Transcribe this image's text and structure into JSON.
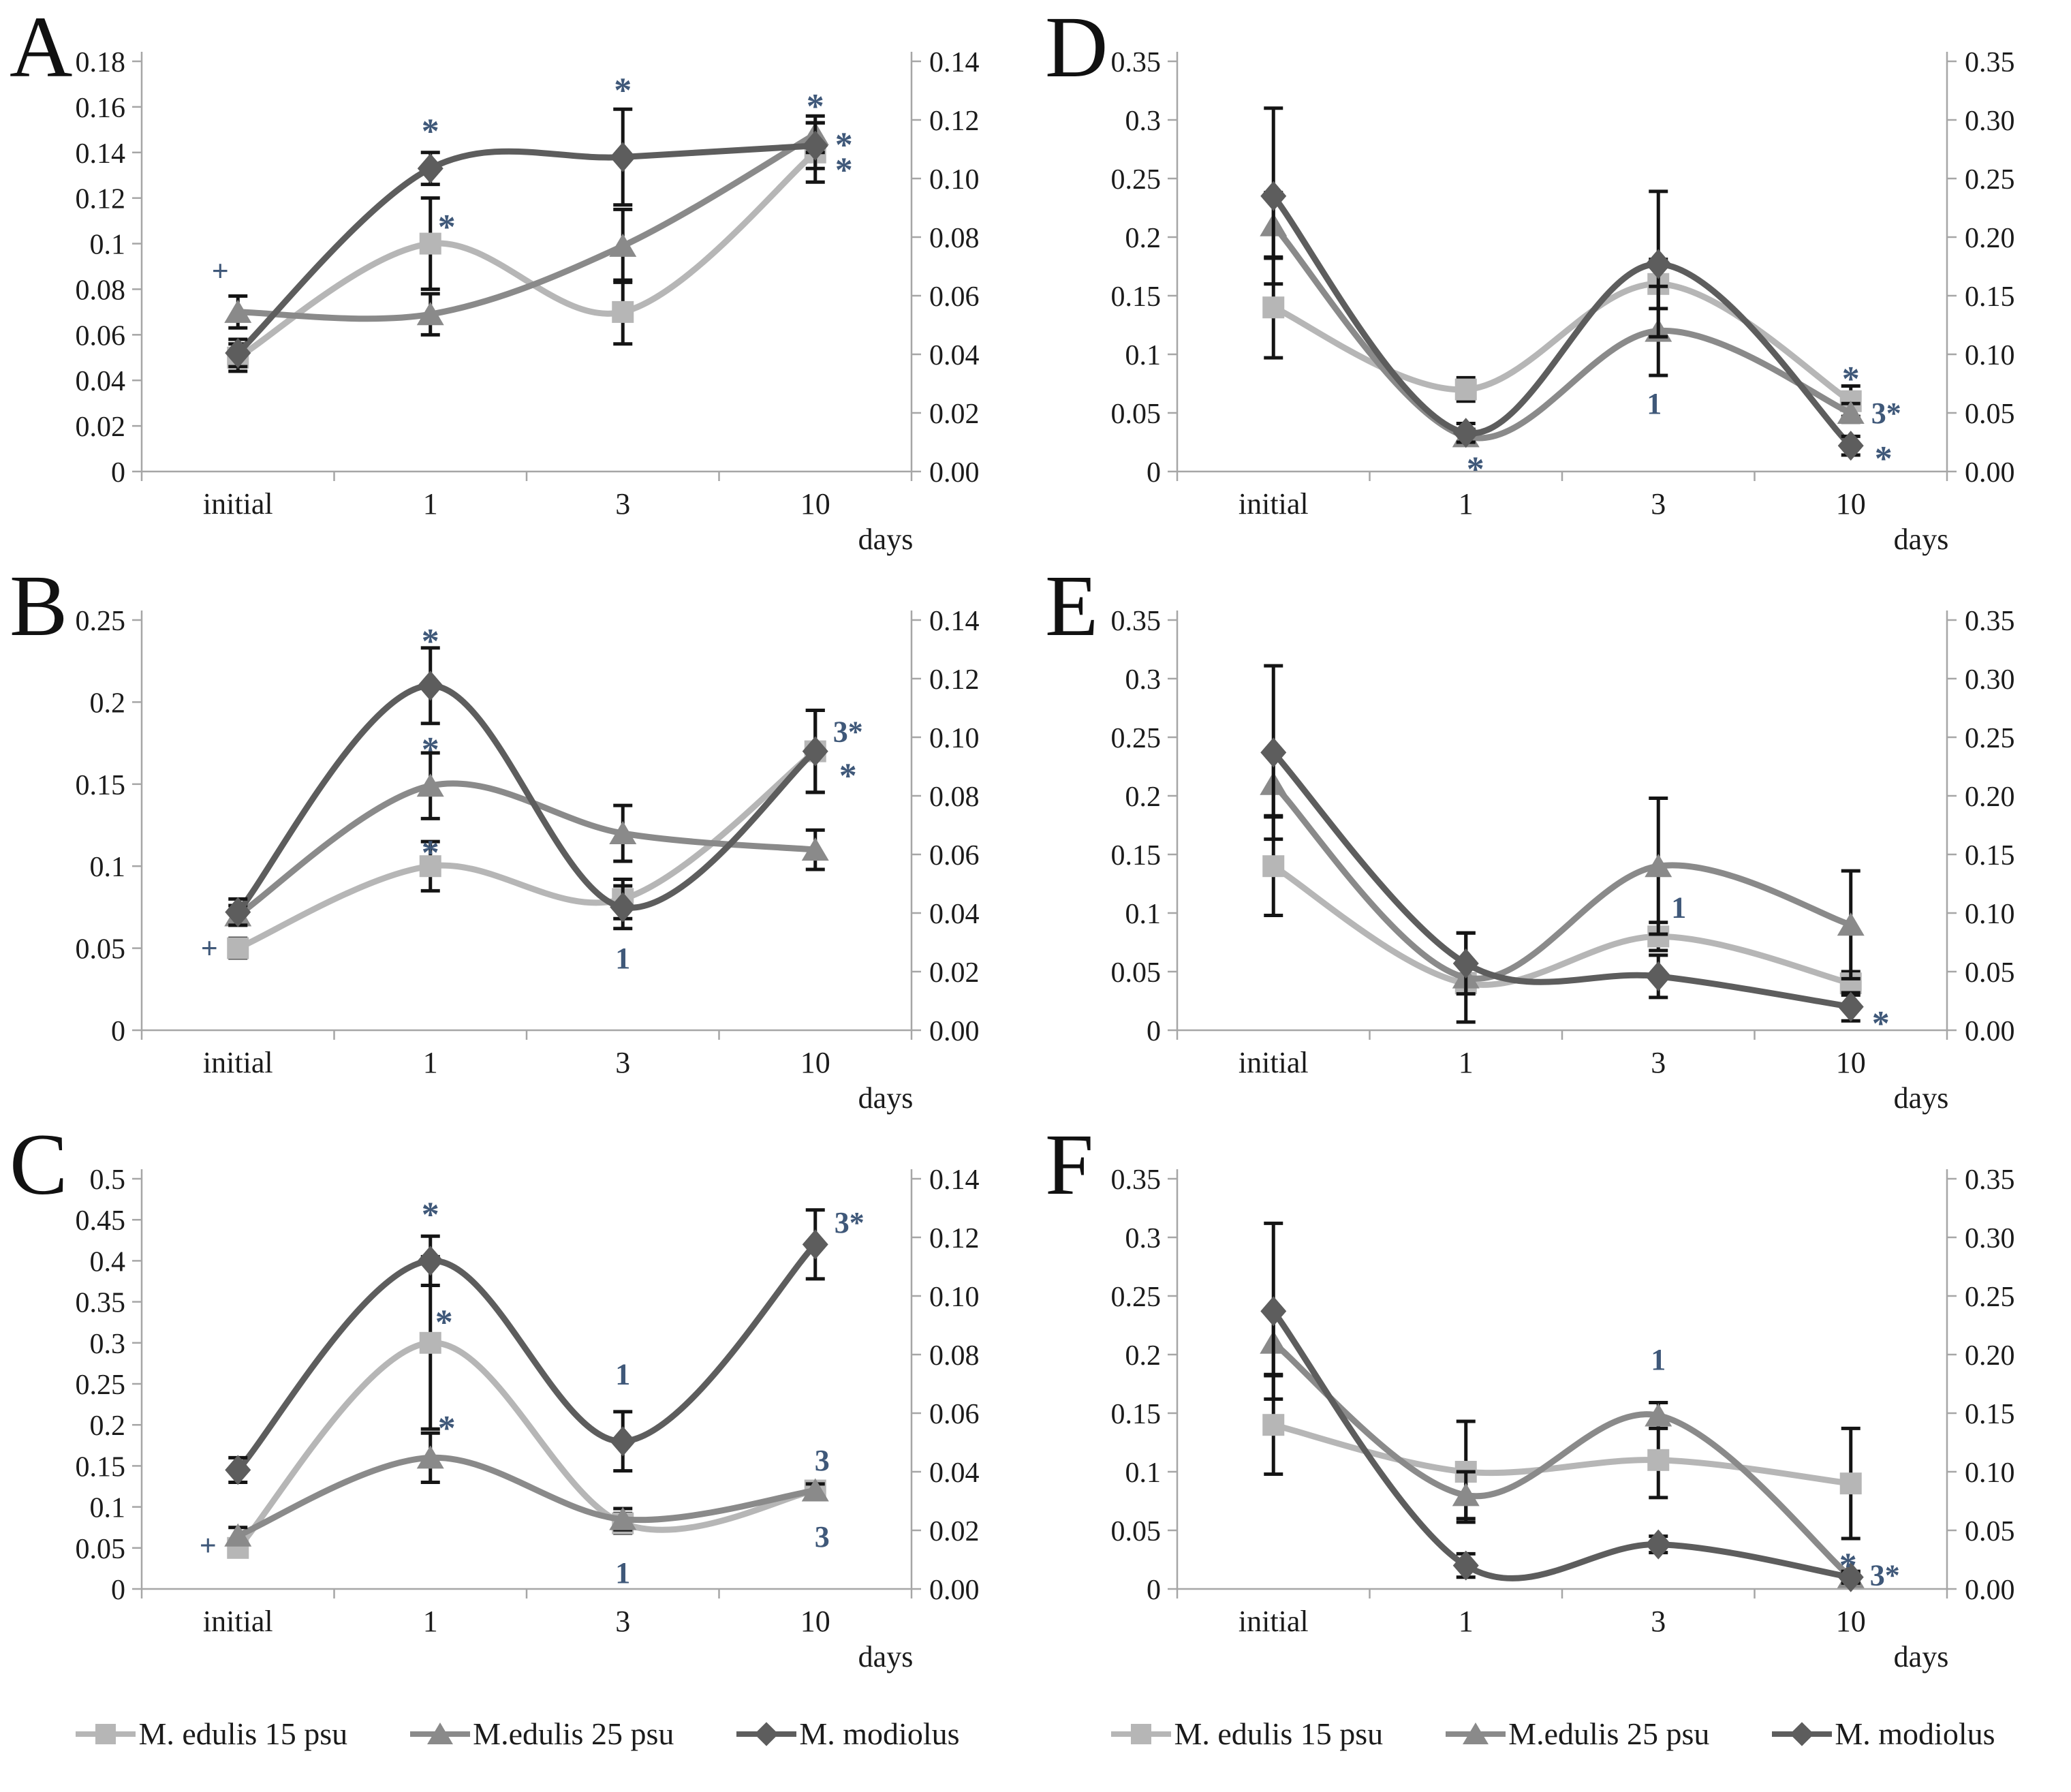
{
  "series_meta": [
    {
      "id": "edulis15",
      "name": "M. edulis 15 psu",
      "marker": "square",
      "color": "#b6b6b6"
    },
    {
      "id": "edulis25",
      "name": "M.edulis 25 psu",
      "marker": "triangle",
      "color": "#8a8a8a"
    },
    {
      "id": "modiolus",
      "name": "M. modiolus",
      "marker": "diamond",
      "color": "#5d5d5d"
    }
  ],
  "colors": {
    "background": "#ffffff",
    "axis": "#a6a6a6",
    "tick_text": "#1b1b1b",
    "panel_letter": "#111111",
    "error_bar": "#141414",
    "annotation": "#3f5879"
  },
  "legend": {
    "note": "same three entries shown under left and right chart columns"
  },
  "chart_data": [
    {
      "label": "A",
      "type": "line",
      "x_categories": [
        "initial",
        "1",
        "3",
        "10"
      ],
      "x_axis_label": "days",
      "left_axis": {
        "max": 0.18,
        "ticks": [
          "0.18",
          "0.16",
          "0.14",
          "0.12",
          "0.1",
          "0.08",
          "0.06",
          "0.04",
          "0.02",
          "0"
        ]
      },
      "right_axis": {
        "ticks": [
          "0.14",
          "0.12",
          "0.10",
          "0.08",
          "0.06",
          "0.04",
          "0.02",
          "0.00"
        ]
      },
      "series": [
        {
          "name": "M. edulis 15 psu",
          "values": [
            0.05,
            0.1,
            0.07,
            0.14
          ],
          "errors": [
            0.006,
            0.02,
            0.014,
            0.013
          ]
        },
        {
          "name": "M.edulis 25 psu",
          "values": [
            0.07,
            0.069,
            0.099,
            0.148
          ],
          "errors": [
            0.007,
            0.009,
            0.016,
            0.008
          ]
        },
        {
          "name": "M. modiolus",
          "values": [
            0.052,
            0.133,
            0.138,
            0.143
          ],
          "errors": [
            0.006,
            0.007,
            0.021,
            0.01
          ]
        }
      ],
      "annotations": [
        {
          "text": "+",
          "cat": 0,
          "value": 0.088,
          "dx": -26
        },
        {
          "text": "*",
          "cat": 1,
          "value": 0.155,
          "dx": 0
        },
        {
          "text": "*",
          "cat": 1,
          "value": 0.113,
          "dx": 24
        },
        {
          "text": "*",
          "cat": 2,
          "value": 0.173,
          "dx": 0
        },
        {
          "text": "*",
          "cat": 3,
          "value": 0.166,
          "dx": 0
        },
        {
          "text": "*",
          "cat": 3,
          "value": 0.149,
          "dx": 42
        },
        {
          "text": "*",
          "cat": 3,
          "value": 0.138,
          "dx": 42
        }
      ]
    },
    {
      "label": "B",
      "type": "line",
      "x_categories": [
        "initial",
        "1",
        "3",
        "10"
      ],
      "x_axis_label": "days",
      "left_axis": {
        "max": 0.25,
        "ticks": [
          "0.25",
          "0.2",
          "0.15",
          "0.1",
          "0.05",
          "0"
        ]
      },
      "right_axis": {
        "ticks": [
          "0.14",
          "0.12",
          "0.10",
          "0.08",
          "0.06",
          "0.04",
          "0.02",
          "0.00"
        ]
      },
      "series": [
        {
          "name": "M. edulis 15 psu",
          "values": [
            0.05,
            0.1,
            0.08,
            0.17
          ],
          "errors": [
            0.006,
            0.015,
            0.012,
            0.025
          ]
        },
        {
          "name": "M.edulis 25 psu",
          "values": [
            0.07,
            0.149,
            0.12,
            0.11
          ],
          "errors": [
            0.006,
            0.02,
            0.017,
            0.012
          ]
        },
        {
          "name": "M. modiolus",
          "values": [
            0.072,
            0.21,
            0.075,
            0.17
          ],
          "errors": [
            0.008,
            0.023,
            0.013,
            0.025
          ]
        }
      ],
      "annotations": [
        {
          "text": "+",
          "cat": 0,
          "value": 0.05,
          "dx": -42
        },
        {
          "text": "*",
          "cat": 1,
          "value": 0.245,
          "dx": 0
        },
        {
          "text": "*",
          "cat": 1,
          "value": 0.179,
          "dx": 0
        },
        {
          "text": "*",
          "cat": 1,
          "value": 0.116,
          "dx": 0
        },
        {
          "text": "1",
          "cat": 2,
          "value": 0.044,
          "dx": 0
        },
        {
          "text": "3*",
          "cat": 3,
          "value": 0.182,
          "dx": 48
        },
        {
          "text": "*",
          "cat": 3,
          "value": 0.163,
          "dx": 48
        }
      ]
    },
    {
      "label": "C",
      "type": "line",
      "x_categories": [
        "initial",
        "1",
        "3",
        "10"
      ],
      "x_axis_label": "days",
      "left_axis": {
        "max": 0.5,
        "ticks": [
          "0.5",
          "0.45",
          "0.4",
          "0.35",
          "0.3",
          "0.25",
          "0.2",
          "0.15",
          "0.1",
          "0.05",
          "0"
        ]
      },
      "right_axis": {
        "ticks": [
          "0.14",
          "0.12",
          "0.10",
          "0.08",
          "0.06",
          "0.04",
          "0.02",
          "0.00"
        ]
      },
      "series": [
        {
          "name": "M. edulis 15 psu",
          "values": [
            0.05,
            0.3,
            0.08,
            0.12
          ],
          "errors": [
            0.008,
            0.105,
            0.012,
            0.008
          ]
        },
        {
          "name": "M.edulis 25 psu",
          "values": [
            0.065,
            0.16,
            0.085,
            0.12
          ],
          "errors": [
            0.01,
            0.03,
            0.013,
            0.008
          ]
        },
        {
          "name": "M. modiolus",
          "values": [
            0.145,
            0.4,
            0.18,
            0.42
          ],
          "errors": [
            0.015,
            0.03,
            0.036,
            0.042
          ]
        }
      ],
      "annotations": [
        {
          "text": "+",
          "cat": 0,
          "value": 0.053,
          "dx": -44
        },
        {
          "text": "*",
          "cat": 1,
          "value": 0.472,
          "dx": 0
        },
        {
          "text": "*",
          "cat": 1,
          "value": 0.341,
          "dx": 20
        },
        {
          "text": "*",
          "cat": 1,
          "value": 0.212,
          "dx": 24
        },
        {
          "text": "1",
          "cat": 2,
          "value": 0.262,
          "dx": 0
        },
        {
          "text": "1",
          "cat": 2,
          "value": 0.02,
          "dx": 0
        },
        {
          "text": "3*",
          "cat": 3,
          "value": 0.447,
          "dx": 50
        },
        {
          "text": "3",
          "cat": 3,
          "value": 0.157,
          "dx": 10
        },
        {
          "text": "3",
          "cat": 3,
          "value": 0.064,
          "dx": 10
        }
      ]
    },
    {
      "label": "D",
      "type": "line",
      "x_categories": [
        "initial",
        "1",
        "3",
        "10"
      ],
      "x_axis_label": "days",
      "left_axis": {
        "max": 0.35,
        "ticks": [
          "0.35",
          "0.3",
          "0.25",
          "0.2",
          "0.15",
          "0.1",
          "0.05",
          "0"
        ]
      },
      "right_axis": {
        "ticks": [
          "0.35",
          "0.30",
          "0.25",
          "0.20",
          "0.15",
          "0.10",
          "0.05",
          "0.00"
        ]
      },
      "series": [
        {
          "name": "M. edulis 15 psu",
          "values": [
            0.14,
            0.07,
            0.16,
            0.06
          ],
          "errors": [
            0.043,
            0.01,
            0.021,
            0.013
          ]
        },
        {
          "name": "M.edulis 25 psu",
          "values": [
            0.21,
            0.03,
            0.12,
            0.05
          ],
          "errors": [
            0.028,
            0.006,
            0.038,
            0.008
          ]
        },
        {
          "name": "M. modiolus",
          "values": [
            0.235,
            0.033,
            0.177,
            0.022
          ],
          "errors": [
            0.075,
            0.008,
            0.062,
            0.008
          ]
        }
      ],
      "annotations": [
        {
          "text": "*",
          "cat": 1,
          "value": 0.013,
          "dx": 14
        },
        {
          "text": "1",
          "cat": 2,
          "value": 0.058,
          "dx": -6
        },
        {
          "text": "*",
          "cat": 3,
          "value": 0.09,
          "dx": 0
        },
        {
          "text": "3*",
          "cat": 3,
          "value": 0.05,
          "dx": 52
        },
        {
          "text": "*",
          "cat": 3,
          "value": 0.022,
          "dx": 48
        }
      ]
    },
    {
      "label": "E",
      "type": "line",
      "x_categories": [
        "initial",
        "1",
        "3",
        "10"
      ],
      "x_axis_label": "days",
      "left_axis": {
        "max": 0.35,
        "ticks": [
          "0.35",
          "0.3",
          "0.25",
          "0.2",
          "0.15",
          "0.1",
          "0.05",
          "0"
        ]
      },
      "right_axis": {
        "ticks": [
          "0.35",
          "0.30",
          "0.25",
          "0.20",
          "0.15",
          "0.10",
          "0.05",
          "0.00"
        ]
      },
      "series": [
        {
          "name": "M. edulis 15 psu",
          "values": [
            0.14,
            0.04,
            0.08,
            0.04
          ],
          "errors": [
            0.042,
            0.008,
            0.012,
            0.01
          ]
        },
        {
          "name": "M.edulis 25 psu",
          "values": [
            0.21,
            0.045,
            0.14,
            0.09
          ],
          "errors": [
            0.027,
            0.038,
            0.058,
            0.046
          ]
        },
        {
          "name": "M. modiolus",
          "values": [
            0.237,
            0.057,
            0.046,
            0.02
          ],
          "errors": [
            0.074,
            0.026,
            0.018,
            0.012
          ]
        }
      ],
      "annotations": [
        {
          "text": "1",
          "cat": 2,
          "value": 0.105,
          "dx": 30
        },
        {
          "text": "*",
          "cat": 3,
          "value": 0.017,
          "dx": 44
        }
      ]
    },
    {
      "label": "F",
      "type": "line",
      "x_categories": [
        "initial",
        "1",
        "3",
        "10"
      ],
      "x_axis_label": "days",
      "left_axis": {
        "max": 0.35,
        "ticks": [
          "0.35",
          "0.3",
          "0.25",
          "0.2",
          "0.15",
          "0.1",
          "0.05",
          "0"
        ]
      },
      "right_axis": {
        "ticks": [
          "0.35",
          "0.30",
          "0.25",
          "0.20",
          "0.15",
          "0.10",
          "0.05",
          "0.00"
        ]
      },
      "series": [
        {
          "name": "M. edulis 15 psu",
          "values": [
            0.14,
            0.1,
            0.11,
            0.09
          ],
          "errors": [
            0.042,
            0.043,
            0.032,
            0.047
          ]
        },
        {
          "name": "M.edulis 25 psu",
          "values": [
            0.21,
            0.08,
            0.148,
            0.01
          ],
          "errors": [
            0.027,
            0.02,
            0.011,
            0.005
          ]
        },
        {
          "name": "M. modiolus",
          "values": [
            0.237,
            0.02,
            0.038,
            0.01
          ],
          "errors": [
            0.075,
            0.01,
            0.007,
            0.005
          ]
        }
      ],
      "annotations": [
        {
          "text": "1",
          "cat": 2,
          "value": 0.196,
          "dx": 0
        },
        {
          "text": "*",
          "cat": 3,
          "value": 0.031,
          "dx": -4
        },
        {
          "text": "3*",
          "cat": 3,
          "value": 0.012,
          "dx": 50
        }
      ]
    }
  ]
}
